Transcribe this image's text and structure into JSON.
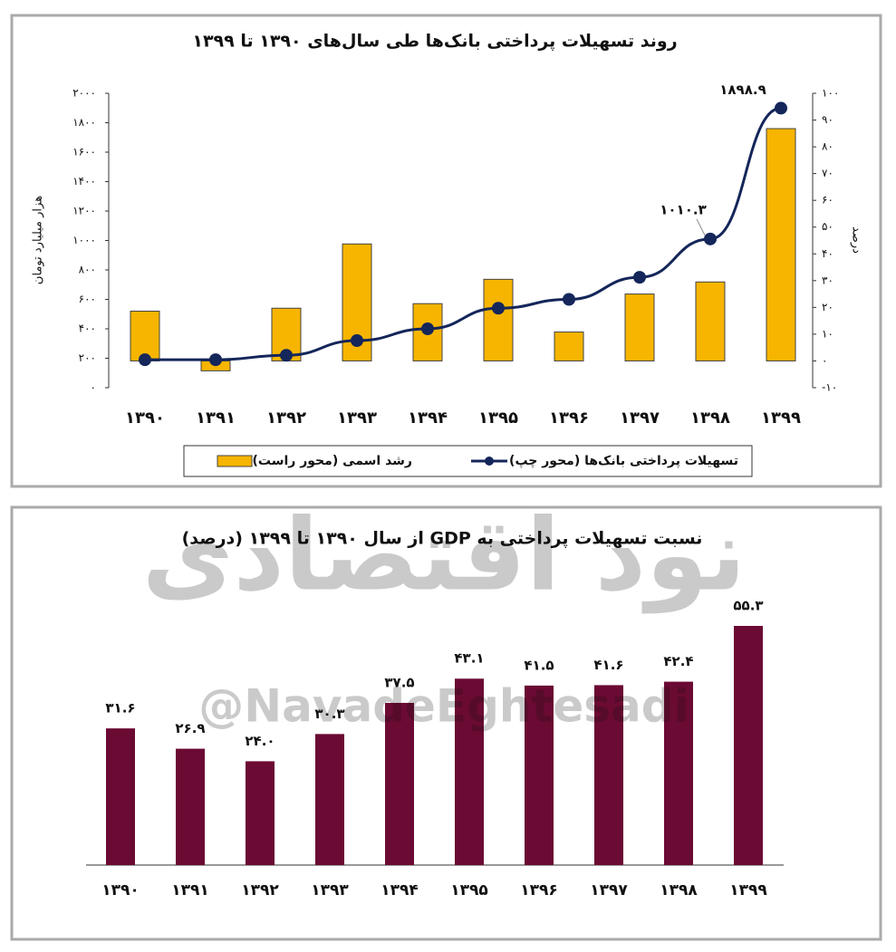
{
  "chart_data": [
    {
      "type": "combo",
      "title": "روند تسهیلات پرداختی بانک‌ها طی سال‌های ۱۳۹۰ تا ۱۳۹۹",
      "ylabel": "هزار میلیارد تومان",
      "y2label": "درصد",
      "categories": [
        "۱۳۹۰",
        "۱۳۹۱",
        "۱۳۹۲",
        "۱۳۹۳",
        "۱۳۹۴",
        "۱۳۹۵",
        "۱۳۹۶",
        "۱۳۹۷",
        "۱۳۹۸",
        "۱۳۹۹"
      ],
      "series": [
        {
          "name": "رشد اسمی (محور راست)",
          "type": "bar",
          "axis": "y2",
          "color": "#f7b500",
          "values": [
            18.6,
            -3.7,
            19.7,
            43.7,
            21.4,
            30.5,
            10.8,
            25,
            29.5,
            86.8
          ]
        },
        {
          "name": "تسهیلات پرداختی بانک‌ها (محور چپ)",
          "type": "line",
          "color": "#14265a",
          "values": [
            190,
            190,
            220,
            320,
            400,
            540,
            600,
            750,
            1010.3,
            1898.9
          ],
          "value_labels": [
            null,
            null,
            null,
            null,
            null,
            null,
            null,
            null,
            "۱۰۱۰.۳",
            "۱۸۹۸.۹"
          ]
        }
      ],
      "ylim": [
        0,
        2000
      ],
      "yticks": [
        {
          "value": 0,
          "label": "۰"
        },
        {
          "value": 200,
          "label": "۲۰۰"
        },
        {
          "value": 400,
          "label": "۴۰۰"
        },
        {
          "value": 600,
          "label": "۶۰۰"
        },
        {
          "value": 800,
          "label": "۸۰۰"
        },
        {
          "value": 1000,
          "label": "۱۰۰۰"
        },
        {
          "value": 1200,
          "label": "۱۲۰۰"
        },
        {
          "value": 1400,
          "label": "۱۴۰۰"
        },
        {
          "value": 1600,
          "label": "۱۶۰۰"
        },
        {
          "value": 1800,
          "label": "۱۸۰۰"
        },
        {
          "value": 2000,
          "label": "۲۰۰۰"
        }
      ],
      "y2lim": [
        -10,
        100
      ],
      "y2ticks": [
        {
          "value": -10,
          "label": "-۱۰"
        },
        {
          "value": 0,
          "label": "۰"
        },
        {
          "value": 10,
          "label": "۱۰"
        },
        {
          "value": 20,
          "label": "۲۰"
        },
        {
          "value": 30,
          "label": "۳۰"
        },
        {
          "value": 40,
          "label": "۴۰"
        },
        {
          "value": 50,
          "label": "۵۰"
        },
        {
          "value": 60,
          "label": "۶۰"
        },
        {
          "value": 70,
          "label": "۷۰"
        },
        {
          "value": 80,
          "label": "۸۰"
        },
        {
          "value": 90,
          "label": "۹۰"
        },
        {
          "value": 100,
          "label": "۱۰۰"
        }
      ],
      "grid": false
    },
    {
      "type": "bar",
      "title": "نسبت تسهیلات پرداختی به GDP از سال ۱۳۹۰ تا ۱۳۹۹ (درصد)",
      "categories": [
        "۱۳۹۰",
        "۱۳۹۱",
        "۱۳۹۲",
        "۱۳۹۳",
        "۱۳۹۴",
        "۱۳۹۵",
        "۱۳۹۶",
        "۱۳۹۷",
        "۱۳۹۸",
        "۱۳۹۹"
      ],
      "values": [
        31.6,
        26.9,
        24.0,
        30.3,
        37.5,
        43.1,
        41.5,
        41.6,
        42.4,
        55.3
      ],
      "value_labels": [
        "۳۱.۶",
        "۲۶.۹",
        "۲۴.۰",
        "۳۰.۳",
        "۳۷.۵",
        "۴۳.۱",
        "۴۱.۵",
        "۴۱.۶",
        "۴۲.۴",
        "۵۵.۳"
      ],
      "color": "#6b0a33"
    }
  ],
  "watermark": {
    "logo": "نود اقتصادی",
    "handle": "@NavadeEghtesadi"
  }
}
